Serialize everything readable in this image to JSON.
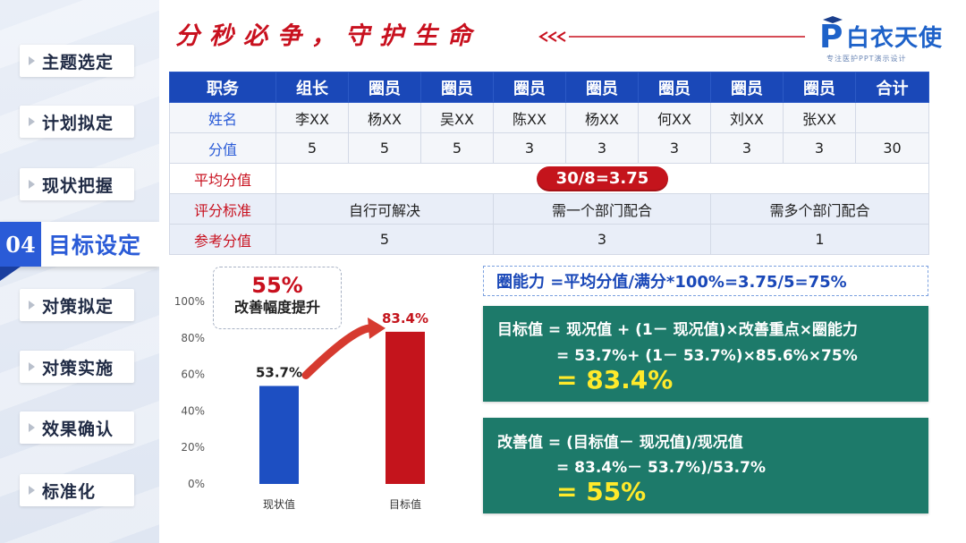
{
  "sidebar": {
    "items": [
      {
        "label": "主题选定"
      },
      {
        "label": "计划拟定"
      },
      {
        "label": "现状把握"
      },
      {
        "label": "目标设定",
        "number": "04",
        "active": true
      },
      {
        "label": "对策拟定"
      },
      {
        "label": "对策实施"
      },
      {
        "label": "效果确认"
      },
      {
        "label": "标准化"
      }
    ]
  },
  "header": {
    "slogan": "分秒必争，守护生命",
    "logo_name": "白衣天使",
    "logo_letter": "P",
    "logo_sub": "专注医护PPT演示设计"
  },
  "table": {
    "headers": [
      "职务",
      "组长",
      "圈员",
      "圈员",
      "圈员",
      "圈员",
      "圈员",
      "圈员",
      "圈员",
      "合计"
    ],
    "name_row": {
      "label": "姓名",
      "values": [
        "李XX",
        "杨XX",
        "吴XX",
        "陈XX",
        "杨XX",
        "何XX",
        "刘XX",
        "张XX",
        ""
      ]
    },
    "score_row": {
      "label": "分值",
      "values": [
        "5",
        "5",
        "5",
        "3",
        "3",
        "3",
        "3",
        "3",
        "30"
      ]
    },
    "avg_row": {
      "label": "平均分值",
      "value": "30/8=3.75"
    },
    "criteria_row": {
      "label": "评分标准",
      "values": [
        "自行可解决",
        "需一个部门配合",
        "需多个部门配合"
      ]
    },
    "reference_row": {
      "label": "参考分值",
      "values": [
        "5",
        "3",
        "1"
      ]
    }
  },
  "callout": {
    "percent": "55%",
    "text": "改善幅度提升"
  },
  "chart_data": {
    "type": "bar",
    "categories": [
      "现状值",
      "目标值"
    ],
    "values": [
      53.7,
      83.4
    ],
    "value_labels": [
      "53.7%",
      "83.4%"
    ],
    "colors": [
      "#1d4fc2",
      "#c4141c"
    ],
    "yticks": [
      "0%",
      "20%",
      "40%",
      "60%",
      "80%",
      "100%"
    ],
    "ylim": [
      0,
      100
    ],
    "title": "",
    "xlabel": "",
    "ylabel": ""
  },
  "formulas": {
    "circle_ability": "圈能力 =平均分值/满分*100%=3.75/5=75%",
    "target": {
      "line1": "目标值 = 现况值 + (1－ 现况值)×改善重点×圈能力",
      "line2": "= 53.7%+ (1－ 53.7%)×85.6%×75%",
      "result": "= 83.4%"
    },
    "improvement": {
      "line1": "改善值 = (目标值－ 现况值)/现况值",
      "line2": "= 83.4%－ 53.7%)/53.7%",
      "result": "= 55%"
    }
  },
  "colors": {
    "primary_blue": "#1a48b8",
    "accent_red": "#c4141c",
    "formula_green": "#1d7a6a",
    "highlight_yellow": "#ffea2b"
  }
}
